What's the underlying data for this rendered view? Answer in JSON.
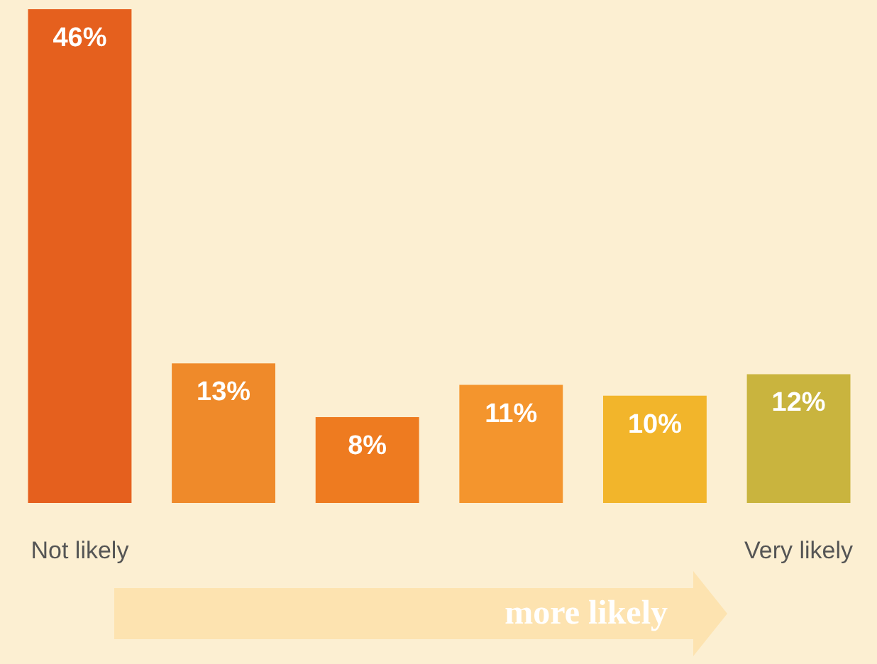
{
  "chart_data": {
    "type": "bar",
    "categories": [
      "Not likely",
      null,
      null,
      null,
      null,
      "Very likely"
    ],
    "values": [
      46,
      13,
      8,
      11,
      10,
      12
    ],
    "colors": [
      "#e5601e",
      "#ef8a2a",
      "#ee7b20",
      "#f4952d",
      "#f2b52b",
      "#c9b43e"
    ],
    "value_labels": [
      "46%",
      "13%",
      "8%",
      "11%",
      "10%",
      "12%"
    ],
    "annotations": [
      "more likely"
    ]
  }
}
